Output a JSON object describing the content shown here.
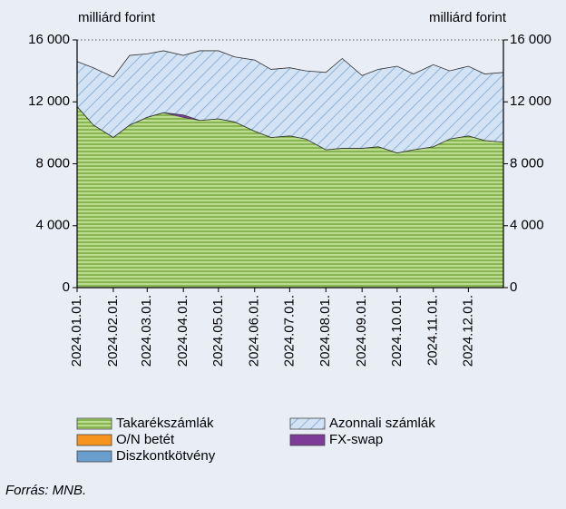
{
  "chart_data": {
    "type": "stacked_area",
    "y_axis_label": "milliárd forint",
    "y2_axis_label": "milliárd forint",
    "source": "Forrás: MNB.",
    "x": [
      "2024-01-01",
      "2024-01-15",
      "2024-02-01",
      "2024-02-15",
      "2024-03-01",
      "2024-03-15",
      "2024-04-01",
      "2024-04-15",
      "2024-05-01",
      "2024-05-15",
      "2024-06-01",
      "2024-06-15",
      "2024-07-01",
      "2024-07-15",
      "2024-08-01",
      "2024-08-15",
      "2024-09-01",
      "2024-09-15",
      "2024-10-01",
      "2024-10-15",
      "2024-11-01",
      "2024-11-15",
      "2024-12-01",
      "2024-12-15",
      "2024-12-31"
    ],
    "xlim": [
      "2024-01-01",
      "2024-12-31"
    ],
    "xticks": [
      {
        "value": "2024-01-01",
        "label": "2024.01.01."
      },
      {
        "value": "2024-02-01",
        "label": "2024.02.01."
      },
      {
        "value": "2024-03-01",
        "label": "2024.03.01."
      },
      {
        "value": "2024-04-01",
        "label": "2024.04.01."
      },
      {
        "value": "2024-05-01",
        "label": "2024.05.01."
      },
      {
        "value": "2024-06-01",
        "label": "2024.06.01."
      },
      {
        "value": "2024-07-01",
        "label": "2024.07.01."
      },
      {
        "value": "2024-08-01",
        "label": "2024.08.01."
      },
      {
        "value": "2024-09-01",
        "label": "2024.09.01."
      },
      {
        "value": "2024-10-01",
        "label": "2024.10.01."
      },
      {
        "value": "2024-11-01",
        "label": "2024.11.01."
      },
      {
        "value": "2024-12-01",
        "label": "2024.12.01."
      }
    ],
    "ylim": [
      0,
      16000
    ],
    "yticks": [
      0,
      {
        "value": 4000,
        "label": "4 000"
      },
      {
        "value": 8000,
        "label": "8 000"
      },
      {
        "value": 12000,
        "label": "12 000"
      },
      {
        "value": 16000,
        "label": "16 000"
      }
    ],
    "y2lim": [
      0,
      16000
    ],
    "y2ticks": [
      0,
      {
        "value": 4000,
        "label": "4 000"
      },
      {
        "value": 8000,
        "label": "8 000"
      },
      {
        "value": 12000,
        "label": "12 000"
      },
      {
        "value": 16000,
        "label": "16 000"
      }
    ],
    "series": [
      {
        "name": "Takarékszámlák",
        "color": "#a9d07a",
        "pattern": "horizontal",
        "legend_slot": [
          0,
          0
        ],
        "values": [
          11700,
          10500,
          9700,
          10500,
          11000,
          11300,
          11000,
          10800,
          10900,
          10700,
          10100,
          9700,
          9800,
          9600,
          8900,
          9000,
          9000,
          9100,
          8700,
          8900,
          9100,
          9600,
          9800,
          9500,
          9400
        ]
      },
      {
        "name": "O/N betét",
        "color": "#f7941d",
        "legend_slot": [
          1,
          0
        ],
        "values": [
          0,
          0,
          0,
          0,
          0,
          0,
          0,
          0,
          0,
          0,
          0,
          0,
          0,
          0,
          0,
          0,
          0,
          0,
          0,
          0,
          0,
          0,
          0,
          0,
          0
        ]
      },
      {
        "name": "Diszkontkötvény",
        "color": "#6a9fcd",
        "legend_slot": [
          2,
          0
        ],
        "values": [
          0,
          0,
          0,
          0,
          0,
          0,
          0,
          0,
          0,
          0,
          0,
          0,
          0,
          0,
          0,
          0,
          0,
          0,
          0,
          0,
          0,
          0,
          0,
          0,
          0
        ]
      },
      {
        "name": "FX-swap",
        "color": "#7d3c98",
        "legend_slot": [
          1,
          1
        ],
        "values": [
          0,
          0,
          0,
          0,
          0,
          0,
          150,
          0,
          0,
          0,
          0,
          0,
          0,
          0,
          0,
          0,
          0,
          0,
          0,
          0,
          0,
          0,
          0,
          0,
          0
        ]
      },
      {
        "name": "Azonnali számlák",
        "color": "#cfe0f2",
        "pattern": "diagonal",
        "legend_slot": [
          0,
          1
        ],
        "values": [
          2900,
          3700,
          3900,
          4500,
          4100,
          4000,
          3850,
          4500,
          4400,
          4200,
          4600,
          4400,
          4400,
          4400,
          5000,
          5800,
          4700,
          5000,
          5600,
          4900,
          5300,
          4400,
          4500,
          4300,
          4500
        ]
      }
    ]
  }
}
